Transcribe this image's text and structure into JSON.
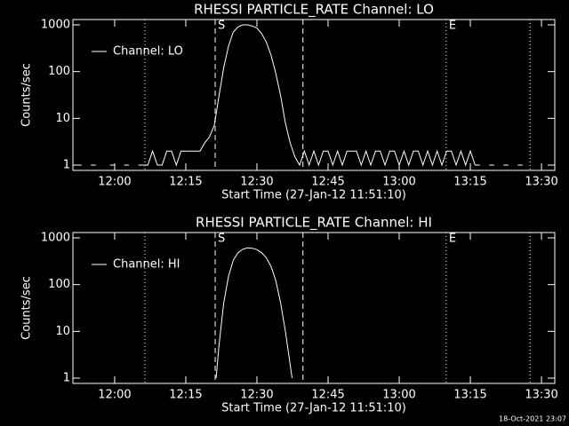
{
  "chart_data": [
    {
      "type": "line",
      "title": "RHESSI PARTICLE_RATE Channel: LO",
      "xlabel": "Start Time (27-Jan-12 11:51:10)",
      "ylabel": "Counts/sec",
      "log_y": true,
      "legend": "upper left",
      "xlim": [
        711.2,
        812.8
      ],
      "ylim": [
        0.77,
        1300
      ],
      "xticks": [
        {
          "value": 720,
          "label": "12:00"
        },
        {
          "value": 735,
          "label": "12:15"
        },
        {
          "value": 750,
          "label": "12:30"
        },
        {
          "value": 765,
          "label": "12:45"
        },
        {
          "value": 780,
          "label": "13:00"
        },
        {
          "value": 795,
          "label": "13:15"
        },
        {
          "value": 810,
          "label": "13:30"
        }
      ],
      "yticks": [
        1,
        10,
        100,
        1000
      ],
      "markers": [
        {
          "x": 726.4,
          "style": "dotted"
        },
        {
          "x": 741.2,
          "style": "dashed",
          "label": "S"
        },
        {
          "x": 759.7,
          "style": "dashed"
        },
        {
          "x": 789.9,
          "style": "dotted",
          "label": "E"
        },
        {
          "x": 807.6,
          "style": "dotted"
        }
      ],
      "series": [
        {
          "name": "Channel: LO",
          "color": "#ffffff",
          "x": [
            712,
            713,
            714,
            715,
            716,
            717,
            718,
            719,
            720,
            721,
            722,
            723,
            724,
            725,
            726,
            727,
            728,
            729,
            730,
            731,
            732,
            733,
            734,
            735,
            736,
            737,
            738,
            739,
            740,
            741,
            742,
            743,
            744,
            745,
            746,
            747,
            748,
            749,
            750,
            751,
            752,
            753,
            754,
            755,
            756,
            757,
            758,
            759,
            760,
            761,
            762,
            763,
            764,
            765,
            766,
            767,
            768,
            769,
            770,
            771,
            772,
            773,
            774,
            775,
            776,
            777,
            778,
            779,
            780,
            781,
            782,
            783,
            784,
            785,
            786,
            787,
            788,
            789,
            790,
            791,
            792,
            793,
            794,
            795,
            796,
            797,
            798,
            799,
            800,
            801,
            802,
            803,
            804,
            805,
            806
          ],
          "values": [
            1,
            1,
            null,
            1,
            1,
            null,
            null,
            1,
            1,
            null,
            1,
            1,
            null,
            1,
            1,
            1,
            2,
            1,
            1,
            2,
            2,
            1,
            2,
            2,
            2,
            2,
            2,
            3,
            4,
            7,
            30,
            120,
            350,
            700,
            900,
            1000,
            1000,
            950,
            850,
            650,
            420,
            220,
            90,
            30,
            8,
            3,
            1.5,
            1,
            2,
            1,
            2,
            1,
            2,
            2,
            1,
            2,
            1,
            2,
            2,
            2,
            1,
            2,
            1,
            2,
            2,
            1,
            2,
            2,
            1,
            2,
            1,
            2,
            2,
            1,
            2,
            1,
            2,
            1,
            2,
            2,
            1,
            2,
            1,
            2,
            1,
            1,
            null,
            1,
            1,
            null,
            1,
            1,
            null,
            1,
            1
          ]
        }
      ]
    },
    {
      "type": "line",
      "title": "RHESSI PARTICLE_RATE Channel: HI",
      "xlabel": "Start Time (27-Jan-12 11:51:10)",
      "ylabel": "Counts/sec",
      "log_y": true,
      "legend": "upper left",
      "xlim": [
        711.2,
        812.8
      ],
      "ylim": [
        0.77,
        1300
      ],
      "xticks": [
        {
          "value": 720,
          "label": "12:00"
        },
        {
          "value": 735,
          "label": "12:15"
        },
        {
          "value": 750,
          "label": "12:30"
        },
        {
          "value": 765,
          "label": "12:45"
        },
        {
          "value": 780,
          "label": "13:00"
        },
        {
          "value": 795,
          "label": "13:15"
        },
        {
          "value": 810,
          "label": "13:30"
        }
      ],
      "yticks": [
        1,
        10,
        100,
        1000
      ],
      "markers": [
        {
          "x": 726.4,
          "style": "dotted"
        },
        {
          "x": 741.2,
          "style": "dashed",
          "label": "S"
        },
        {
          "x": 759.7,
          "style": "dashed"
        },
        {
          "x": 789.9,
          "style": "dotted",
          "label": "E"
        },
        {
          "x": 807.6,
          "style": "dotted"
        }
      ],
      "series": [
        {
          "name": "Channel: HI",
          "color": "#ffffff",
          "x": [
            741.4,
            742,
            743,
            744,
            745,
            746,
            747,
            748,
            749,
            750,
            751,
            752,
            753,
            754,
            755,
            756,
            757,
            757.4
          ],
          "values": [
            1,
            5,
            40,
            150,
            330,
            480,
            570,
            610,
            600,
            560,
            480,
            370,
            240,
            120,
            40,
            10,
            2,
            1
          ]
        }
      ]
    }
  ],
  "timestamp": "18-Oct-2021 23:07"
}
